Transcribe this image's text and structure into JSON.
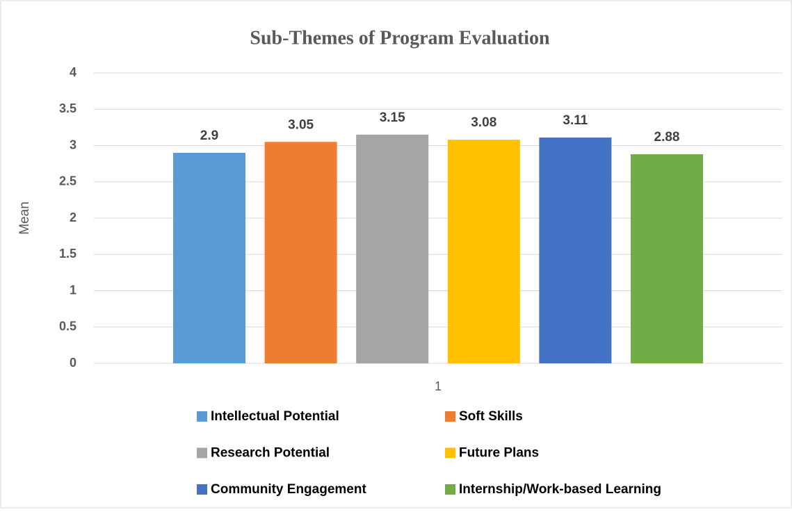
{
  "chart_data": {
    "type": "bar",
    "title": "Sub-Themes of Program Evaluation",
    "y_label": "Mean",
    "categories": [
      "1"
    ],
    "series": [
      {
        "name": "Intellectual Potential",
        "color": "#5b9bd5",
        "values": [
          2.9
        ]
      },
      {
        "name": "Soft Skills",
        "color": "#ed7d31",
        "values": [
          3.05
        ]
      },
      {
        "name": "Research Potential",
        "color": "#a5a5a5",
        "values": [
          3.15
        ]
      },
      {
        "name": "Future Plans",
        "color": "#ffc000",
        "values": [
          3.08
        ]
      },
      {
        "name": "Community Engagement",
        "color": "#4472c4",
        "values": [
          3.11
        ]
      },
      {
        "name": "Internship/Work-based Learning",
        "color": "#70ad47",
        "values": [
          2.88
        ]
      }
    ],
    "ylim": [
      0,
      4
    ],
    "yticks": [
      0,
      0.5,
      1,
      1.5,
      2,
      2.5,
      3,
      3.5,
      4
    ],
    "grid": true,
    "legend": "bottom"
  }
}
